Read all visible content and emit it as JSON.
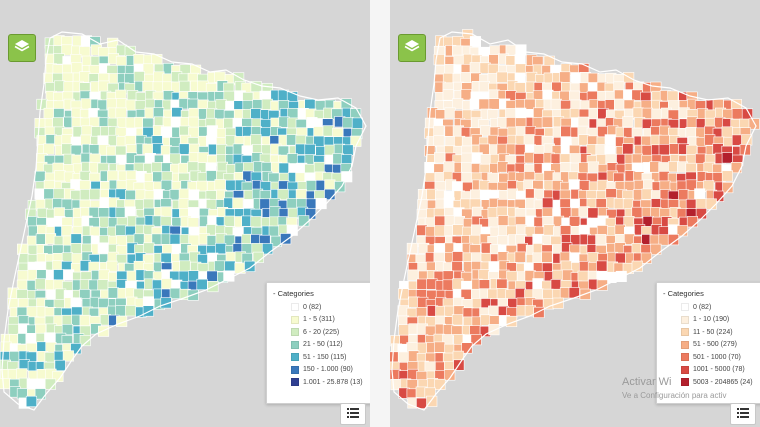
{
  "maps": [
    {
      "id": "left",
      "legend": {
        "title": "- Categories",
        "items": [
          {
            "label": "0 (82)",
            "color": "#ffffff"
          },
          {
            "label": "1 - 5 (311)",
            "color": "#f7fbd0"
          },
          {
            "label": "6 - 20 (225)",
            "color": "#d0ecc0"
          },
          {
            "label": "21 - 50 (112)",
            "color": "#8ecfbf"
          },
          {
            "label": "51 - 150 (115)",
            "color": "#4fb0c8"
          },
          {
            "label": "150 - 1.000 (90)",
            "color": "#3a78bb"
          },
          {
            "label": "1.001 - 25.878 (13)",
            "color": "#2f3f91"
          }
        ]
      }
    },
    {
      "id": "right",
      "legend": {
        "title": "- Categories",
        "items": [
          {
            "label": "0 (82)",
            "color": "#ffffff"
          },
          {
            "label": "1 - 10 (190)",
            "color": "#fdf0df"
          },
          {
            "label": "11 - 50 (224)",
            "color": "#fbd7b2"
          },
          {
            "label": "51 - 500 (279)",
            "color": "#f6ae86"
          },
          {
            "label": "501 - 1000 (70)",
            "color": "#ec7a5f"
          },
          {
            "label": "1001 - 5000 (78)",
            "color": "#d84a44"
          },
          {
            "label": "5003 - 204865 (24)",
            "color": "#b3202d"
          }
        ]
      }
    }
  ],
  "watermark": {
    "line1": "Activar Wi",
    "line2": "Ve a Configuración para activ"
  },
  "icons": {
    "layers": "layers-icon",
    "list": "list-icon"
  }
}
